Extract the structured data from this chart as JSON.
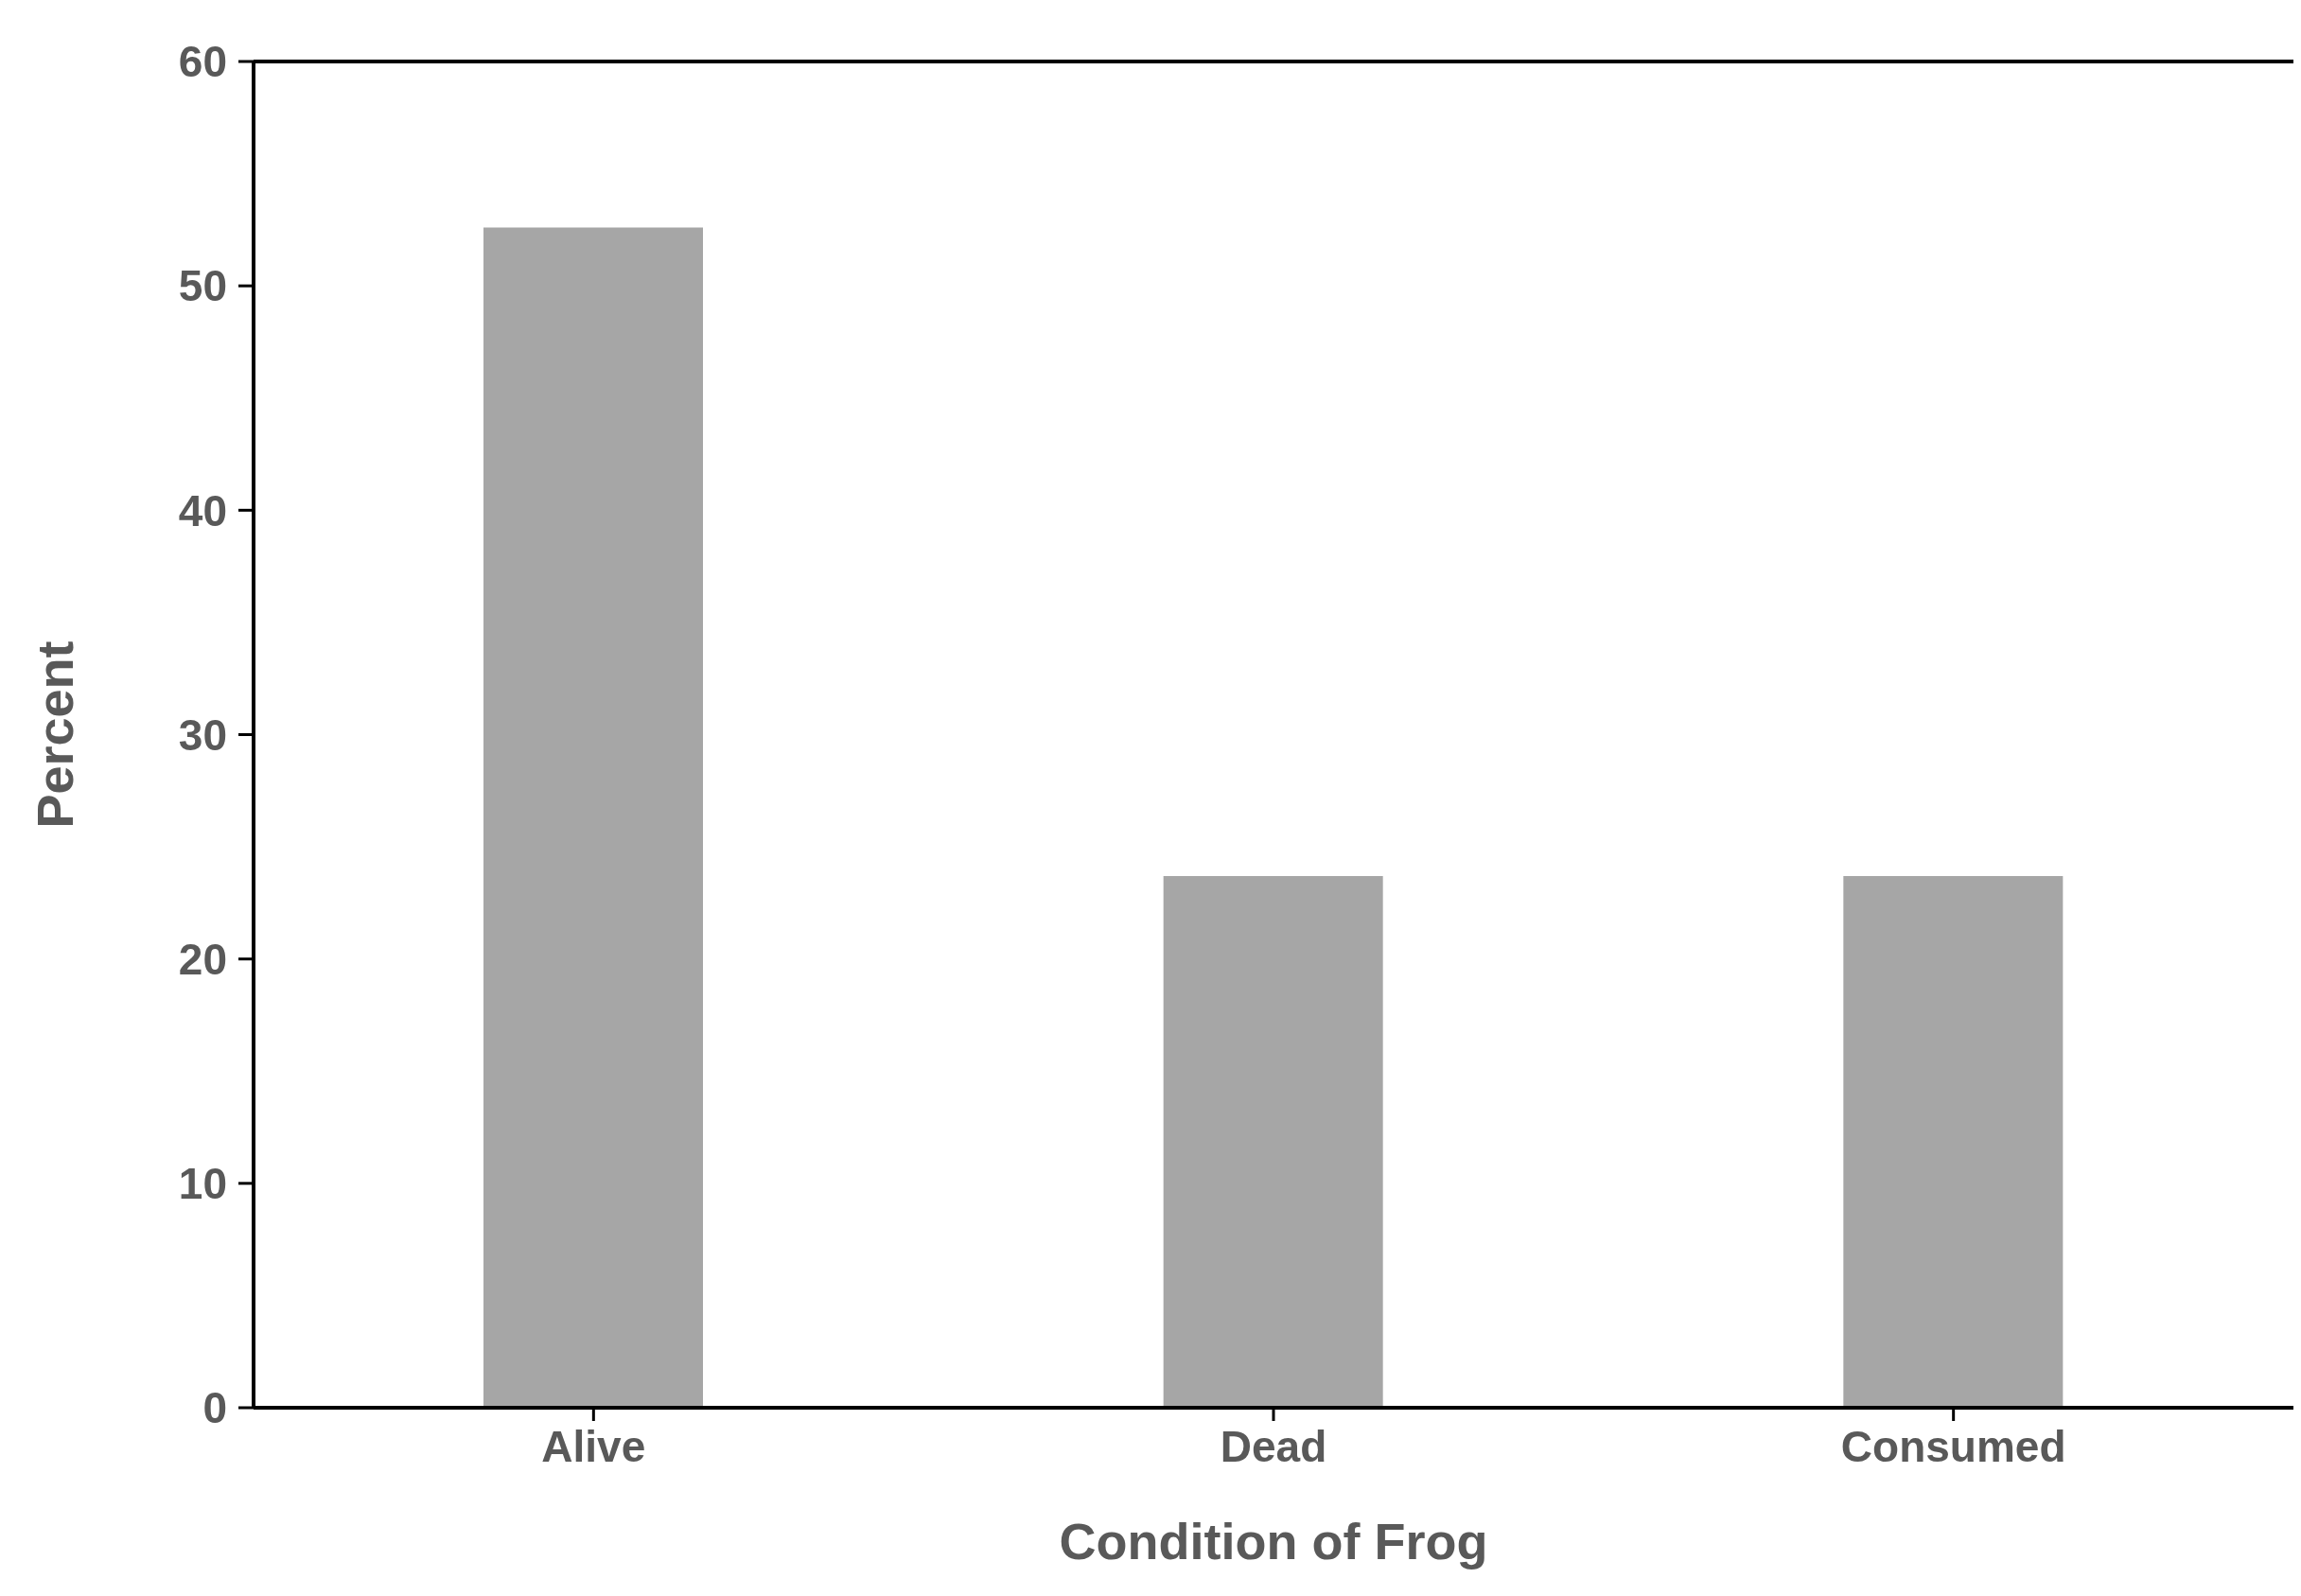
{
  "chart_data": {
    "type": "bar",
    "xlabel": "Condition of Frog",
    "ylabel": "Percent",
    "categories": [
      "Alive",
      "Dead",
      "Consumed"
    ],
    "values": [
      52.6,
      23.7,
      23.7
    ],
    "color": "#a6a6a6",
    "ylim": [
      0,
      60
    ],
    "yticks": [
      0,
      10,
      20,
      30,
      40,
      50,
      60
    ],
    "grid": false,
    "legend": false
  }
}
